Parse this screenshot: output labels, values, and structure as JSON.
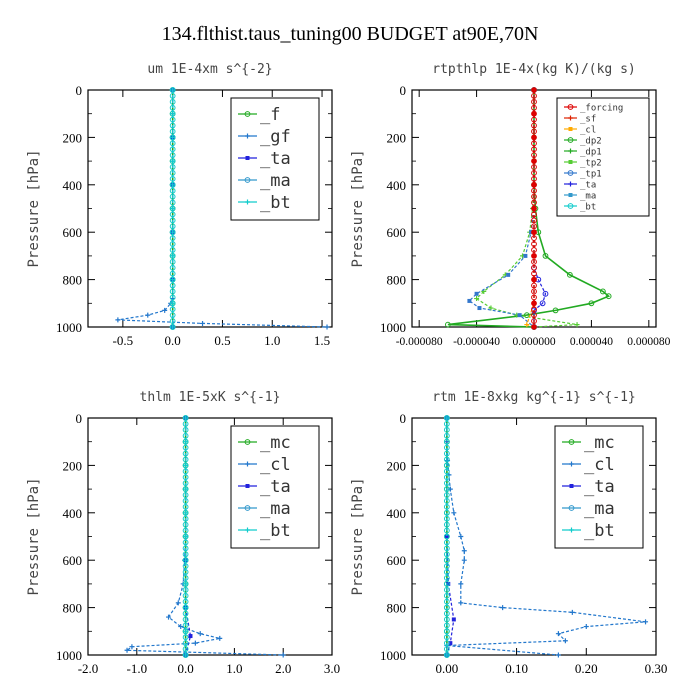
{
  "figure_title": "134.flthist.taus_tuning00  BUDGET at90E,70N",
  "chart_data": [
    {
      "type": "line",
      "title": "um   1E-4xm s^{-2}",
      "ylabel": "Pressure [hPa]",
      "xlim": [
        -0.85,
        1.6
      ],
      "ylim": [
        1000,
        0
      ],
      "xticks": [
        "-0.5",
        "0.0",
        "0.5",
        "1.0",
        "1.5"
      ],
      "xtick_values": [
        -0.5,
        0.0,
        0.5,
        1.0,
        1.5
      ],
      "yticks": [
        "0",
        "200",
        "400",
        "600",
        "800",
        "1000"
      ],
      "ytick_values": [
        0,
        200,
        400,
        600,
        800,
        1000
      ],
      "legend": [
        "_f",
        "_gf",
        "_ta",
        "_ma",
        "_bt"
      ],
      "legend_size": "large",
      "series": [
        {
          "name": "_f",
          "color": "#22aa22",
          "points": [
            [
              0,
              0
            ],
            [
              0,
              100
            ],
            [
              0,
              200
            ],
            [
              0,
              300
            ],
            [
              0,
              400
            ],
            [
              0,
              500
            ],
            [
              0,
              600
            ],
            [
              0,
              700
            ],
            [
              0,
              800
            ],
            [
              0,
              900
            ],
            [
              0,
              1000
            ]
          ]
        },
        {
          "name": "_gf",
          "color": "#2277cc",
          "points": [
            [
              0,
              0
            ],
            [
              0,
              100
            ],
            [
              0,
              200
            ],
            [
              0,
              300
            ],
            [
              0,
              400
            ],
            [
              0,
              500
            ],
            [
              0,
              600
            ],
            [
              0,
              700
            ],
            [
              0,
              800
            ],
            [
              0,
              880
            ],
            [
              -0.02,
              900
            ],
            [
              -0.08,
              930
            ],
            [
              -0.25,
              950
            ],
            [
              -0.55,
              970
            ],
            [
              0.3,
              985
            ],
            [
              1.55,
              1000
            ]
          ]
        },
        {
          "name": "_ta",
          "color": "#2222dd",
          "points": [
            [
              0,
              0
            ],
            [
              0,
              200
            ],
            [
              0,
              400
            ],
            [
              0,
              600
            ],
            [
              0,
              800
            ],
            [
              0,
              1000
            ]
          ]
        },
        {
          "name": "_ma",
          "color": "#3399cc",
          "points": [
            [
              0,
              0
            ],
            [
              0,
              200
            ],
            [
              0,
              400
            ],
            [
              0,
              600
            ],
            [
              0,
              800
            ],
            [
              0,
              1000
            ]
          ]
        },
        {
          "name": "_bt",
          "color": "#11cccc",
          "points": [
            [
              0,
              0
            ],
            [
              0,
              100
            ],
            [
              0,
              200
            ],
            [
              0,
              300
            ],
            [
              0,
              400
            ],
            [
              0,
              500
            ],
            [
              0,
              600
            ],
            [
              0,
              700
            ],
            [
              0,
              800
            ],
            [
              0,
              900
            ],
            [
              0,
              1000
            ]
          ]
        }
      ]
    },
    {
      "type": "line",
      "title": "rtpthlp   1E-4x(kg K)/(kg s)",
      "ylabel": "Pressure [hPa]",
      "xlim": [
        -8.5e-05,
        8.5e-05
      ],
      "ylim": [
        1000,
        0
      ],
      "xticks": [
        "-0.000080",
        "-0.000040",
        "0.000000",
        "0.000040",
        "0.000080"
      ],
      "xtick_values": [
        -8e-05,
        -4e-05,
        0.0,
        4e-05,
        8e-05
      ],
      "yticks": [
        "0",
        "200",
        "400",
        "600",
        "800",
        "1000"
      ],
      "ytick_values": [
        0,
        200,
        400,
        600,
        800,
        1000
      ],
      "legend": [
        "_forcing",
        "_sf",
        "_cl",
        "_dp2",
        "_dp1",
        "_tp2",
        "_tp1",
        "_ta",
        "_ma",
        "_bt"
      ],
      "legend_size": "small",
      "series": [
        {
          "name": "_dp1",
          "color": "#22aa22",
          "points": [
            [
              0,
              0
            ],
            [
              0,
              400
            ],
            [
              1e-06,
              500
            ],
            [
              3e-06,
              600
            ],
            [
              8e-06,
              700
            ],
            [
              2.5e-05,
              780
            ],
            [
              4.8e-05,
              850
            ],
            [
              5.2e-05,
              870
            ],
            [
              4e-05,
              900
            ],
            [
              1.5e-05,
              930
            ],
            [
              -5e-06,
              950
            ],
            [
              -6e-05,
              990
            ],
            [
              0,
              1000
            ]
          ]
        },
        {
          "name": "_tp2",
          "color": "#55cc33",
          "points": [
            [
              0,
              0
            ],
            [
              0,
              400
            ],
            [
              -1e-06,
              500
            ],
            [
              -3e-06,
              600
            ],
            [
              -8e-06,
              700
            ],
            [
              -2e-05,
              780
            ],
            [
              -3.5e-05,
              850
            ],
            [
              -4e-05,
              880
            ],
            [
              -3e-05,
              920
            ],
            [
              -1.2e-05,
              950
            ],
            [
              3e-05,
              990
            ],
            [
              0,
              1000
            ]
          ]
        },
        {
          "name": "_tp1",
          "color": "#3377cc",
          "points": [
            [
              0,
              0
            ],
            [
              0,
              500
            ],
            [
              -2e-06,
              600
            ],
            [
              -6e-06,
              700
            ],
            [
              -1.8e-05,
              780
            ],
            [
              -4e-05,
              860
            ],
            [
              -4.5e-05,
              890
            ],
            [
              -3.8e-05,
              920
            ],
            [
              -1e-05,
              950
            ],
            [
              0,
              1000
            ]
          ]
        },
        {
          "name": "_ta",
          "color": "#2222dd",
          "points": [
            [
              0,
              0
            ],
            [
              0,
              750
            ],
            [
              3e-06,
              800
            ],
            [
              8e-06,
              860
            ],
            [
              6e-06,
              900
            ],
            [
              0,
              930
            ],
            [
              0,
              1000
            ]
          ]
        },
        {
          "name": "_cl",
          "color": "#ffaa00",
          "points": [
            [
              0,
              0
            ],
            [
              0,
              900
            ],
            [
              -5e-06,
              990
            ],
            [
              0,
              1000
            ]
          ]
        },
        {
          "name": "_ma",
          "color": "#3399cc",
          "points": [
            [
              0,
              0
            ],
            [
              0,
              1000
            ]
          ]
        },
        {
          "name": "_bt",
          "color": "#11cccc",
          "points": [
            [
              0,
              0
            ],
            [
              0,
              1000
            ]
          ]
        },
        {
          "name": "_sf",
          "color": "#dd2200",
          "points": [
            [
              0,
              0
            ],
            [
              0,
              100
            ],
            [
              0,
              200
            ],
            [
              0,
              300
            ],
            [
              0,
              400
            ],
            [
              0,
              500
            ],
            [
              0,
              600
            ],
            [
              0,
              700
            ],
            [
              0,
              800
            ],
            [
              0,
              900
            ],
            [
              0,
              1000
            ]
          ]
        },
        {
          "name": "_forcing",
          "color": "#dd0000",
          "points": [
            [
              0,
              0
            ],
            [
              0,
              100
            ],
            [
              0,
              200
            ],
            [
              0,
              300
            ],
            [
              0,
              400
            ],
            [
              0,
              500
            ],
            [
              0,
              600
            ],
            [
              0,
              700
            ],
            [
              0,
              800
            ],
            [
              0,
              900
            ],
            [
              0,
              1000
            ]
          ]
        }
      ]
    },
    {
      "type": "line",
      "title": "thlm   1E-5xK s^{-1}",
      "ylabel": "Pressure [hPa]",
      "xlim": [
        -2.0,
        3.0
      ],
      "ylim": [
        1000,
        0
      ],
      "xticks": [
        "-2.0",
        "-1.0",
        "0.0",
        "1.0",
        "2.0",
        "3.0"
      ],
      "xtick_values": [
        -2.0,
        -1.0,
        0.0,
        1.0,
        2.0,
        3.0
      ],
      "yticks": [
        "0",
        "200",
        "400",
        "600",
        "800",
        "1000"
      ],
      "ytick_values": [
        0,
        200,
        400,
        600,
        800,
        1000
      ],
      "legend": [
        "_mc",
        "_cl",
        "_ta",
        "_ma",
        "_bt"
      ],
      "legend_size": "large",
      "series": [
        {
          "name": "_mc",
          "color": "#22aa22",
          "points": [
            [
              0,
              0
            ],
            [
              0,
              100
            ],
            [
              0,
              200
            ],
            [
              0,
              300
            ],
            [
              0,
              400
            ],
            [
              0,
              500
            ],
            [
              0,
              600
            ],
            [
              0,
              700
            ],
            [
              0,
              800
            ],
            [
              0,
              900
            ],
            [
              0,
              1000
            ]
          ]
        },
        {
          "name": "_cl",
          "color": "#2277cc",
          "points": [
            [
              0,
              0
            ],
            [
              0,
              500
            ],
            [
              -0.02,
              600
            ],
            [
              -0.05,
              700
            ],
            [
              -0.15,
              780
            ],
            [
              -0.35,
              840
            ],
            [
              -0.1,
              880
            ],
            [
              0.3,
              910
            ],
            [
              0.7,
              930
            ],
            [
              0.2,
              950
            ],
            [
              -1.1,
              965
            ],
            [
              -1.2,
              980
            ],
            [
              2.0,
              1000
            ]
          ]
        },
        {
          "name": "_ta",
          "color": "#2222dd",
          "points": [
            [
              0,
              0
            ],
            [
              0,
              600
            ],
            [
              0,
              800
            ],
            [
              0.1,
              920
            ],
            [
              0,
              1000
            ]
          ]
        },
        {
          "name": "_ma",
          "color": "#3399cc",
          "points": [
            [
              0,
              0
            ],
            [
              0,
              1000
            ]
          ]
        },
        {
          "name": "_bt",
          "color": "#11cccc",
          "points": [
            [
              0,
              0
            ],
            [
              0,
              100
            ],
            [
              0,
              200
            ],
            [
              0,
              300
            ],
            [
              0,
              400
            ],
            [
              0,
              500
            ],
            [
              0,
              600
            ],
            [
              0,
              700
            ],
            [
              0,
              800
            ],
            [
              0,
              900
            ],
            [
              0,
              1000
            ]
          ]
        }
      ]
    },
    {
      "type": "line",
      "title": "rtm   1E-8xkg kg^{-1} s^{-1}",
      "ylabel": "Pressure [hPa]",
      "xlim": [
        -0.05,
        0.3
      ],
      "ylim": [
        1000,
        0
      ],
      "xticks": [
        "0.00",
        "0.10",
        "0.20",
        "0.30"
      ],
      "xtick_values": [
        0.0,
        0.1,
        0.2,
        0.3
      ],
      "yticks": [
        "0",
        "200",
        "400",
        "600",
        "800",
        "1000"
      ],
      "ytick_values": [
        0,
        200,
        400,
        600,
        800,
        1000
      ],
      "legend": [
        "_mc",
        "_cl",
        "_ta",
        "_ma",
        "_bt"
      ],
      "legend_size": "large",
      "series": [
        {
          "name": "_mc",
          "color": "#22aa22",
          "points": [
            [
              0,
              0
            ],
            [
              0,
              100
            ],
            [
              0,
              200
            ],
            [
              0,
              300
            ],
            [
              0,
              400
            ],
            [
              0,
              500
            ],
            [
              0,
              600
            ],
            [
              0,
              700
            ],
            [
              0,
              800
            ],
            [
              0,
              900
            ],
            [
              0,
              1000
            ]
          ]
        },
        {
          "name": "_cl",
          "color": "#2277cc",
          "points": [
            [
              0,
              0
            ],
            [
              0,
              100
            ],
            [
              0.001,
              180
            ],
            [
              0.003,
              240
            ],
            [
              0.005,
              300
            ],
            [
              0.01,
              400
            ],
            [
              0.02,
              500
            ],
            [
              0.025,
              560
            ],
            [
              0.025,
              600
            ],
            [
              0.02,
              700
            ],
            [
              0.02,
              780
            ],
            [
              0.08,
              800
            ],
            [
              0.18,
              820
            ],
            [
              0.285,
              860
            ],
            [
              0.2,
              880
            ],
            [
              0.16,
              910
            ],
            [
              0.17,
              940
            ],
            [
              0.0,
              960
            ],
            [
              0.16,
              1000
            ]
          ]
        },
        {
          "name": "_ta",
          "color": "#2222dd",
          "points": [
            [
              0,
              0
            ],
            [
              0,
              500
            ],
            [
              0.002,
              700
            ],
            [
              0.01,
              850
            ],
            [
              0.005,
              950
            ],
            [
              0,
              1000
            ]
          ]
        },
        {
          "name": "_ma",
          "color": "#3399cc",
          "points": [
            [
              0,
              0
            ],
            [
              0,
              1000
            ]
          ]
        },
        {
          "name": "_bt",
          "color": "#11cccc",
          "points": [
            [
              0,
              0
            ],
            [
              0,
              1000
            ]
          ]
        }
      ]
    }
  ]
}
